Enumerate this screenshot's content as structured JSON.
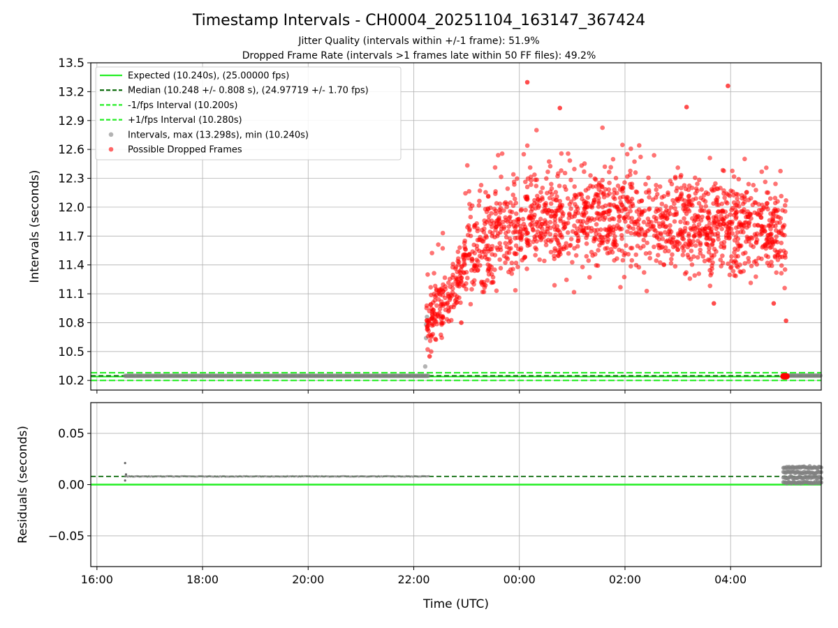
{
  "figure": {
    "title": "Timestamp Intervals - CH0004_20251104_163147_367424",
    "subtitle_1": "Jitter Quality (intervals within +/-1 frame): 51.9%",
    "subtitle_2": "Dropped Frame Rate (intervals >1 frames late within 50 FF files): 49.2%"
  },
  "colors": {
    "expected": "#22ee22",
    "median": "#006400",
    "interval_band": "#22ee22",
    "intervals": "#808080",
    "dropped": "#ff0000",
    "grid": "#b0b0b0"
  },
  "chart_data": [
    {
      "type": "scatter",
      "ylabel": "Intervals (seconds)",
      "ylim": [
        10.1,
        13.5
      ],
      "xlim": [
        "15:53",
        "05:43"
      ],
      "y_ticks": [
        "10.2",
        "10.5",
        "10.8",
        "11.1",
        "11.4",
        "11.7",
        "12.0",
        "12.3",
        "12.6",
        "12.9",
        "13.2",
        "13.5"
      ],
      "grid": true,
      "legend_position": "top-left",
      "legend": [
        "Expected (10.240s), (25.00000 fps)",
        "Median (10.248 +/- 0.808 s), (24.97719 +/- 1.70 fps)",
        "-1/fps Interval (10.200s)",
        "+1/fps Interval (10.280s)",
        "Intervals, max (13.298s), min (10.240s)",
        "Possible Dropped Frames"
      ],
      "reference_lines": {
        "expected": 10.24,
        "median": 10.248,
        "minus_1_fps": 10.2,
        "plus_1_fps": 10.28
      },
      "series": [
        {
          "kind": "intervals",
          "segments": [
            {
              "start": "16:32",
              "end": "22:17",
              "value": 10.248
            },
            {
              "start": "05:00",
              "end": "05:43",
              "value": 10.25
            }
          ],
          "points": [
            {
              "t": "22:13",
              "v": 10.345
            },
            {
              "t": "22:14",
              "v": 10.64
            },
            {
              "t": "22:14",
              "v": 10.78
            },
            {
              "t": "22:15",
              "v": 10.86
            }
          ]
        },
        {
          "kind": "dropped",
          "cluster": {
            "start": "22:14",
            "end": "05:04",
            "typical_min": 11.3,
            "typical_max": 12.4
          },
          "notable_points": [
            {
              "t": "00:09",
              "v": 13.298
            },
            {
              "t": "03:57",
              "v": 13.26
            },
            {
              "t": "03:10",
              "v": 13.04
            },
            {
              "t": "00:46",
              "v": 13.03
            },
            {
              "t": "22:18",
              "v": 10.45
            },
            {
              "t": "05:03",
              "v": 10.82
            },
            {
              "t": "03:41",
              "v": 11.0
            },
            {
              "t": "04:49",
              "v": 11.0
            },
            {
              "t": "22:54",
              "v": 10.8
            },
            {
              "t": "05:00",
              "v": 10.24
            },
            {
              "t": "05:04",
              "v": 10.24
            }
          ]
        }
      ]
    },
    {
      "type": "scatter",
      "xlabel": "Time (UTC)",
      "ylabel": "Residuals (seconds)",
      "ylim": [
        -0.08,
        0.08
      ],
      "x_ticks": [
        "16:00",
        "18:00",
        "20:00",
        "22:00",
        "00:00",
        "02:00",
        "04:00"
      ],
      "y_ticks": [
        "−0.05",
        "0.00",
        "0.05"
      ],
      "grid": true,
      "reference_lines": {
        "expected": 0.0,
        "median": 0.008
      },
      "series": [
        {
          "kind": "residuals",
          "segments": [
            {
              "start": "16:32",
              "end": "22:17",
              "value": 0.008
            }
          ],
          "points": [
            {
              "t": "16:32",
              "v": 0.021
            },
            {
              "t": "16:32",
              "v": 0.004
            },
            {
              "t": "16:33",
              "v": 0.01
            }
          ],
          "end_cluster": {
            "start": "05:00",
            "end": "05:43",
            "min": 0.002,
            "max": 0.017
          }
        }
      ]
    }
  ]
}
